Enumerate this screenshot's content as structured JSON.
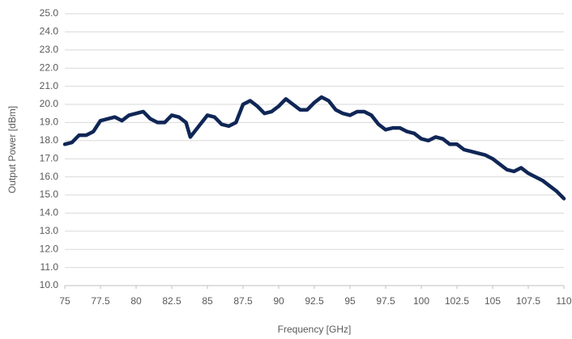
{
  "chart_data": {
    "type": "line",
    "xlabel": "Frequency [GHz]",
    "ylabel": "Output Power [dBm]",
    "x": [
      75,
      75.5,
      76,
      76.5,
      77,
      77.5,
      78,
      78.5,
      79,
      79.5,
      80,
      80.5,
      81,
      81.5,
      82,
      82.5,
      83,
      83.5,
      83.8,
      84,
      84.5,
      85,
      85.5,
      86,
      86.5,
      87,
      87.5,
      88,
      88.5,
      89,
      89.5,
      90,
      90.5,
      91,
      91.5,
      92,
      92.5,
      93,
      93.5,
      94,
      94.5,
      95,
      95.5,
      96,
      96.5,
      97,
      97.5,
      98,
      98.5,
      99,
      99.5,
      100,
      100.5,
      101,
      101.5,
      102,
      102.5,
      103,
      103.5,
      104,
      104.5,
      105,
      105.5,
      106,
      106.5,
      107,
      107.5,
      108,
      108.5,
      109,
      109.5,
      110
    ],
    "values": [
      17.8,
      17.9,
      18.3,
      18.3,
      18.5,
      19.1,
      19.2,
      19.3,
      19.1,
      19.4,
      19.5,
      19.6,
      19.2,
      19.0,
      19.0,
      19.4,
      19.3,
      19.0,
      18.2,
      18.4,
      18.9,
      19.4,
      19.3,
      18.9,
      18.8,
      19.0,
      20.0,
      20.2,
      19.9,
      19.5,
      19.6,
      19.9,
      20.3,
      20.0,
      19.7,
      19.7,
      20.1,
      20.4,
      20.2,
      19.7,
      19.5,
      19.4,
      19.6,
      19.6,
      19.4,
      18.9,
      18.6,
      18.7,
      18.7,
      18.5,
      18.4,
      18.1,
      18.0,
      18.2,
      18.1,
      17.8,
      17.8,
      17.5,
      17.4,
      17.3,
      17.2,
      17.0,
      16.7,
      16.4,
      16.3,
      16.5,
      16.2,
      16.0,
      15.8,
      15.5,
      15.2,
      14.8
    ],
    "color": "#0f2656",
    "xlim": [
      75,
      110
    ],
    "xticks": [
      75,
      77.5,
      80,
      82.5,
      85,
      87.5,
      90,
      92.5,
      95,
      97.5,
      100,
      102.5,
      105,
      107.5,
      110
    ],
    "ylim": [
      10,
      25
    ],
    "yticks": [
      {
        "value": 10,
        "label": "10.0"
      },
      {
        "value": 11,
        "label": "11.0"
      },
      {
        "value": 12,
        "label": "12.0"
      },
      {
        "value": 13,
        "label": "13.0"
      },
      {
        "value": 14,
        "label": "14.0"
      },
      {
        "value": 15,
        "label": "15.0"
      },
      {
        "value": 16,
        "label": "16.0"
      },
      {
        "value": 17,
        "label": "17.0"
      },
      {
        "value": 18,
        "label": "18.0"
      },
      {
        "value": 19,
        "label": "19.0"
      },
      {
        "value": 20,
        "label": "20.0"
      },
      {
        "value": 21,
        "label": "21.0"
      },
      {
        "value": 22,
        "label": "22.0"
      },
      {
        "value": 23,
        "label": "23.0"
      },
      {
        "value": 24,
        "label": "24.0"
      },
      {
        "value": 25,
        "label": "25.0"
      }
    ],
    "grid": true
  }
}
